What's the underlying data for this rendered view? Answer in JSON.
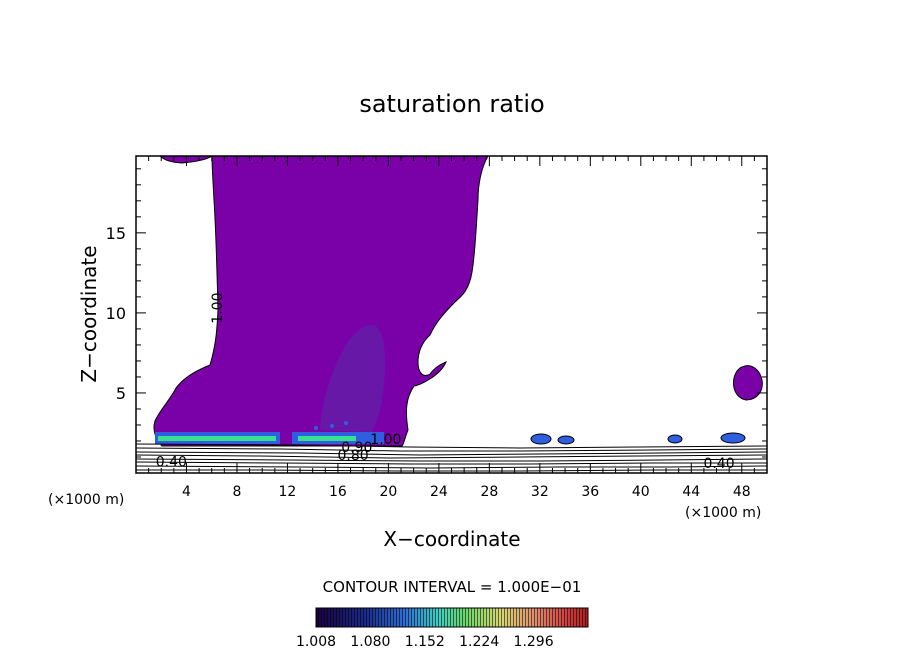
{
  "chart_data": {
    "type": "contour",
    "title": "saturation ratio",
    "xlabel": "X−coordinate",
    "ylabel": "Z−coordinate",
    "x_unit_left": "(×1000 m)",
    "x_unit_right": "(×1000 m)",
    "xlim": [
      0,
      50
    ],
    "ylim": [
      0,
      19.8
    ],
    "x_ticks": [
      4,
      8,
      12,
      16,
      20,
      24,
      28,
      32,
      36,
      40,
      44,
      48
    ],
    "y_ticks": [
      5,
      10,
      15
    ],
    "contour_interval_text": "CONTOUR INTERVAL = 1.000E−01",
    "contour_labels": [
      {
        "text": "1.00",
        "x": 6.8,
        "z": 10.3
      },
      {
        "text": "0.40",
        "x": 2.8,
        "z": 0.4
      },
      {
        "text": "0.40",
        "x": 46.2,
        "z": 0.3
      },
      {
        "text": "0.80",
        "x": 17.2,
        "z": 0.8
      },
      {
        "text": "0.90",
        "x": 17.5,
        "z": 1.3
      },
      {
        "text": "1.00",
        "x": 19.8,
        "z": 1.8
      }
    ],
    "colorbar": {
      "labels": [
        "1.008",
        "1.080",
        "1.152",
        "1.224",
        "1.296"
      ],
      "min": 1.008,
      "max": 1.368
    },
    "colors": {
      "cloud": "#7a00a8",
      "cloud_core": "#6818a6",
      "layer_blue": "#2f5fe0",
      "layer_green": "#38e090"
    }
  }
}
